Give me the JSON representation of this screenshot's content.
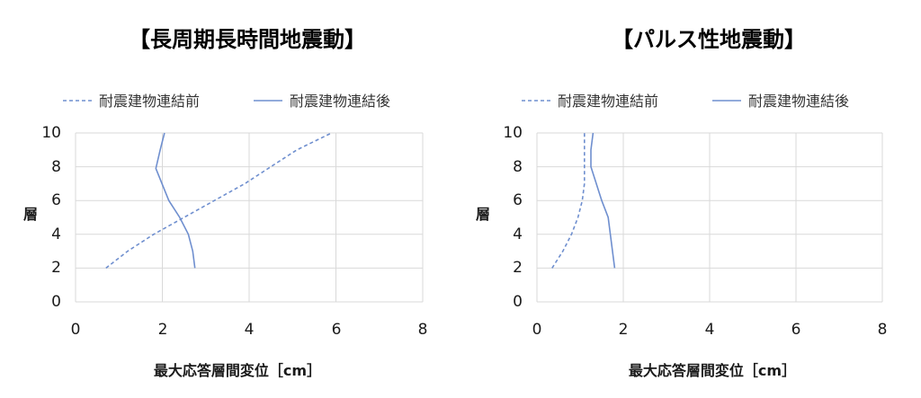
{
  "charts": [
    {
      "title": "【長周期長時間地震動】",
      "legend": [
        "耐震建物連結前",
        "耐震建物連結後"
      ],
      "xlabel": "最大応答層間変位［cm］",
      "ylabel": "層",
      "xticks": [
        "0",
        "2",
        "4",
        "6",
        "8"
      ],
      "yticks": [
        "0",
        "2",
        "4",
        "6",
        "8",
        "10"
      ]
    },
    {
      "title": "【パルス性地震動】",
      "legend": [
        "耐震建物連結前",
        "耐震建物連結後"
      ],
      "xlabel": "最大応答層間変位［cm］",
      "ylabel": "層",
      "xticks": [
        "0",
        "2",
        "4",
        "6",
        "8"
      ],
      "yticks": [
        "0",
        "2",
        "4",
        "6",
        "8",
        "10"
      ]
    }
  ],
  "colors": {
    "series": "#6f8fcf",
    "grid": "#d9d9d9",
    "text": "#1a1a1a"
  },
  "chart_data": [
    {
      "type": "line",
      "title": "【長周期長時間地震動】",
      "xlabel": "最大応答層間変位［cm］",
      "ylabel": "層",
      "xlim": [
        0,
        8
      ],
      "ylim": [
        0,
        10
      ],
      "grid": true,
      "legend_position": "top",
      "series": [
        {
          "name": "耐震建物連結前",
          "style": "dashed",
          "x": [
            0.7,
            1.2,
            1.8,
            2.5,
            3.2,
            3.9,
            4.5,
            5.1,
            5.9
          ],
          "y": [
            2,
            3,
            4,
            5,
            6,
            7,
            8,
            9,
            10
          ]
        },
        {
          "name": "耐震建物連結後",
          "style": "solid",
          "x": [
            2.75,
            2.7,
            2.6,
            2.4,
            2.15,
            1.85,
            1.95,
            2.05
          ],
          "y": [
            2,
            3,
            4,
            5,
            6,
            7.9,
            9,
            10
          ]
        }
      ]
    },
    {
      "type": "line",
      "title": "【パルス性地震動】",
      "xlabel": "最大応答層間変位［cm］",
      "ylabel": "層",
      "xlim": [
        0,
        8
      ],
      "ylim": [
        0,
        10
      ],
      "grid": true,
      "legend_position": "top",
      "series": [
        {
          "name": "耐震建物連結前",
          "style": "dashed",
          "x": [
            0.35,
            0.6,
            0.8,
            0.95,
            1.05,
            1.1,
            1.1,
            1.1,
            1.1
          ],
          "y": [
            2,
            3,
            4,
            5,
            6,
            7,
            8,
            9,
            10
          ]
        },
        {
          "name": "耐震建物連結後",
          "style": "solid",
          "x": [
            1.8,
            1.75,
            1.7,
            1.65,
            1.5,
            1.25,
            1.25,
            1.3
          ],
          "y": [
            2,
            3,
            4,
            5,
            6,
            8,
            9,
            10
          ]
        }
      ]
    }
  ]
}
